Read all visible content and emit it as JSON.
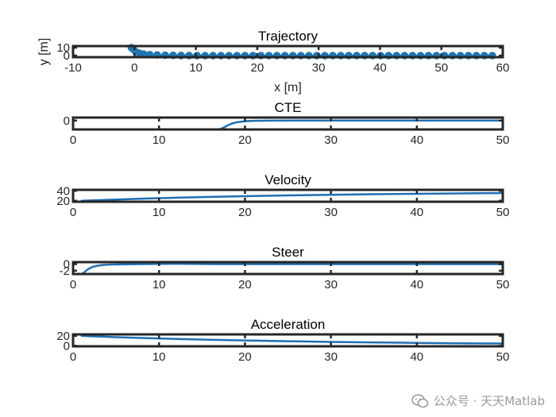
{
  "chart_data": [
    {
      "type": "line",
      "title": "Trajectory",
      "xlabel": "x [m]",
      "ylabel": "y [m]",
      "xlim": [
        -10,
        60
      ],
      "ylim": [
        -2,
        12
      ],
      "xticks": [
        -10,
        0,
        10,
        20,
        30,
        40,
        50,
        60
      ],
      "yticks": [
        0,
        10
      ],
      "markers": true,
      "series": [
        {
          "name": "path",
          "x": [
            -0.5,
            -0.2,
            0.2,
            0.8,
            1.5,
            2.5,
            3.7,
            5.0,
            6.3,
            7.6,
            8.9,
            10.2,
            11.5,
            12.8,
            14.1,
            15.4,
            16.7,
            18.0,
            19.3,
            20.6,
            21.9,
            23.2,
            24.5,
            25.8,
            27.1,
            28.4,
            29.7,
            31.0,
            32.3,
            33.6,
            34.9,
            36.2,
            37.5,
            38.8,
            40.1,
            41.4,
            42.7,
            44.0,
            45.3,
            46.6,
            47.9,
            49.2,
            50.5,
            51.8,
            53.1,
            54.4,
            55.7,
            57.0,
            58.3
          ],
          "y": [
            10,
            8,
            5,
            3,
            2,
            1.2,
            0.8,
            0.5,
            0.3,
            0.2,
            0.1,
            0.05,
            0,
            0,
            0,
            0,
            0,
            0,
            0,
            0,
            0,
            0,
            0,
            0,
            0,
            0,
            0,
            0,
            0,
            0,
            0,
            0,
            0,
            0,
            0,
            0,
            0,
            0,
            0,
            0,
            0,
            0,
            0,
            0,
            0,
            0,
            0,
            0,
            0
          ]
        }
      ]
    },
    {
      "type": "line",
      "title": "CTE",
      "xlabel": "",
      "ylabel": "",
      "xlim": [
        0,
        50
      ],
      "ylim": [
        -15,
        5
      ],
      "xticks": [
        0,
        10,
        20,
        30,
        40,
        50
      ],
      "yticks": [
        0
      ],
      "markers": false,
      "series": [
        {
          "name": "CTE",
          "x": [
            17.0,
            17.5,
            18.0,
            18.5,
            19.0,
            20.0,
            21.0,
            23.0,
            26.0,
            30.0,
            40.0,
            50.0
          ],
          "y": [
            -15,
            -12,
            -8,
            -5,
            -3,
            -1.2,
            -0.5,
            -0.2,
            0,
            0,
            0,
            0
          ]
        }
      ]
    },
    {
      "type": "line",
      "title": "Velocity",
      "xlabel": "",
      "ylabel": "",
      "xlim": [
        0,
        50
      ],
      "ylim": [
        18,
        42
      ],
      "xticks": [
        0,
        10,
        20,
        30,
        40,
        50
      ],
      "yticks": [
        20,
        40
      ],
      "markers": false,
      "series": [
        {
          "name": "Velocity",
          "x": [
            1,
            3,
            5,
            8,
            10,
            13,
            16,
            20,
            25,
            30,
            35,
            40,
            45,
            50
          ],
          "y": [
            20,
            21.3,
            22.5,
            24.2,
            25.2,
            26.6,
            27.8,
            29.2,
            30.8,
            32.1,
            33.2,
            34.1,
            34.9,
            35.5
          ]
        }
      ]
    },
    {
      "type": "line",
      "title": "Steer",
      "xlabel": "",
      "ylabel": "",
      "xlim": [
        0,
        50
      ],
      "ylim": [
        -3,
        0.6
      ],
      "xticks": [
        0,
        10,
        20,
        30,
        40,
        50
      ],
      "yticks": [
        -2,
        0
      ],
      "markers": false,
      "series": [
        {
          "name": "Steer",
          "x": [
            1.0,
            1.3,
            1.7,
            2.2,
            2.8,
            3.5,
            4.5,
            6.0,
            8.0,
            10.0,
            12.0,
            14.0,
            16.0,
            20.0,
            30.0,
            40.0,
            50.0
          ],
          "y": [
            -3.0,
            -2.5,
            -1.6,
            -0.9,
            -0.5,
            -0.25,
            -0.12,
            -0.05,
            0,
            0.05,
            0.1,
            0.05,
            0,
            0,
            0,
            0,
            0
          ]
        }
      ]
    },
    {
      "type": "line",
      "title": "Acceleration",
      "xlabel": "",
      "ylabel": "",
      "xlim": [
        0,
        50
      ],
      "ylim": [
        -1,
        23
      ],
      "xticks": [
        0,
        10,
        20,
        30,
        40,
        50
      ],
      "yticks": [
        0,
        20
      ],
      "markers": false,
      "series": [
        {
          "name": "Acceleration",
          "x": [
            1,
            3,
            5,
            8,
            10,
            13,
            16,
            20,
            25,
            30,
            35,
            40,
            45,
            50
          ],
          "y": [
            20,
            18.7,
            17.5,
            15.8,
            14.8,
            13.4,
            12.2,
            10.8,
            9.2,
            7.9,
            6.8,
            5.9,
            5.1,
            4.5
          ]
        }
      ]
    }
  ],
  "colors": {
    "series": "#1f6fb2",
    "marker": "#1f77b4",
    "axis": "#262626",
    "watermark": "#9a9a9a"
  },
  "watermark": {
    "icon": "wechat-icon",
    "text": "公众号 · 天天Matlab"
  }
}
